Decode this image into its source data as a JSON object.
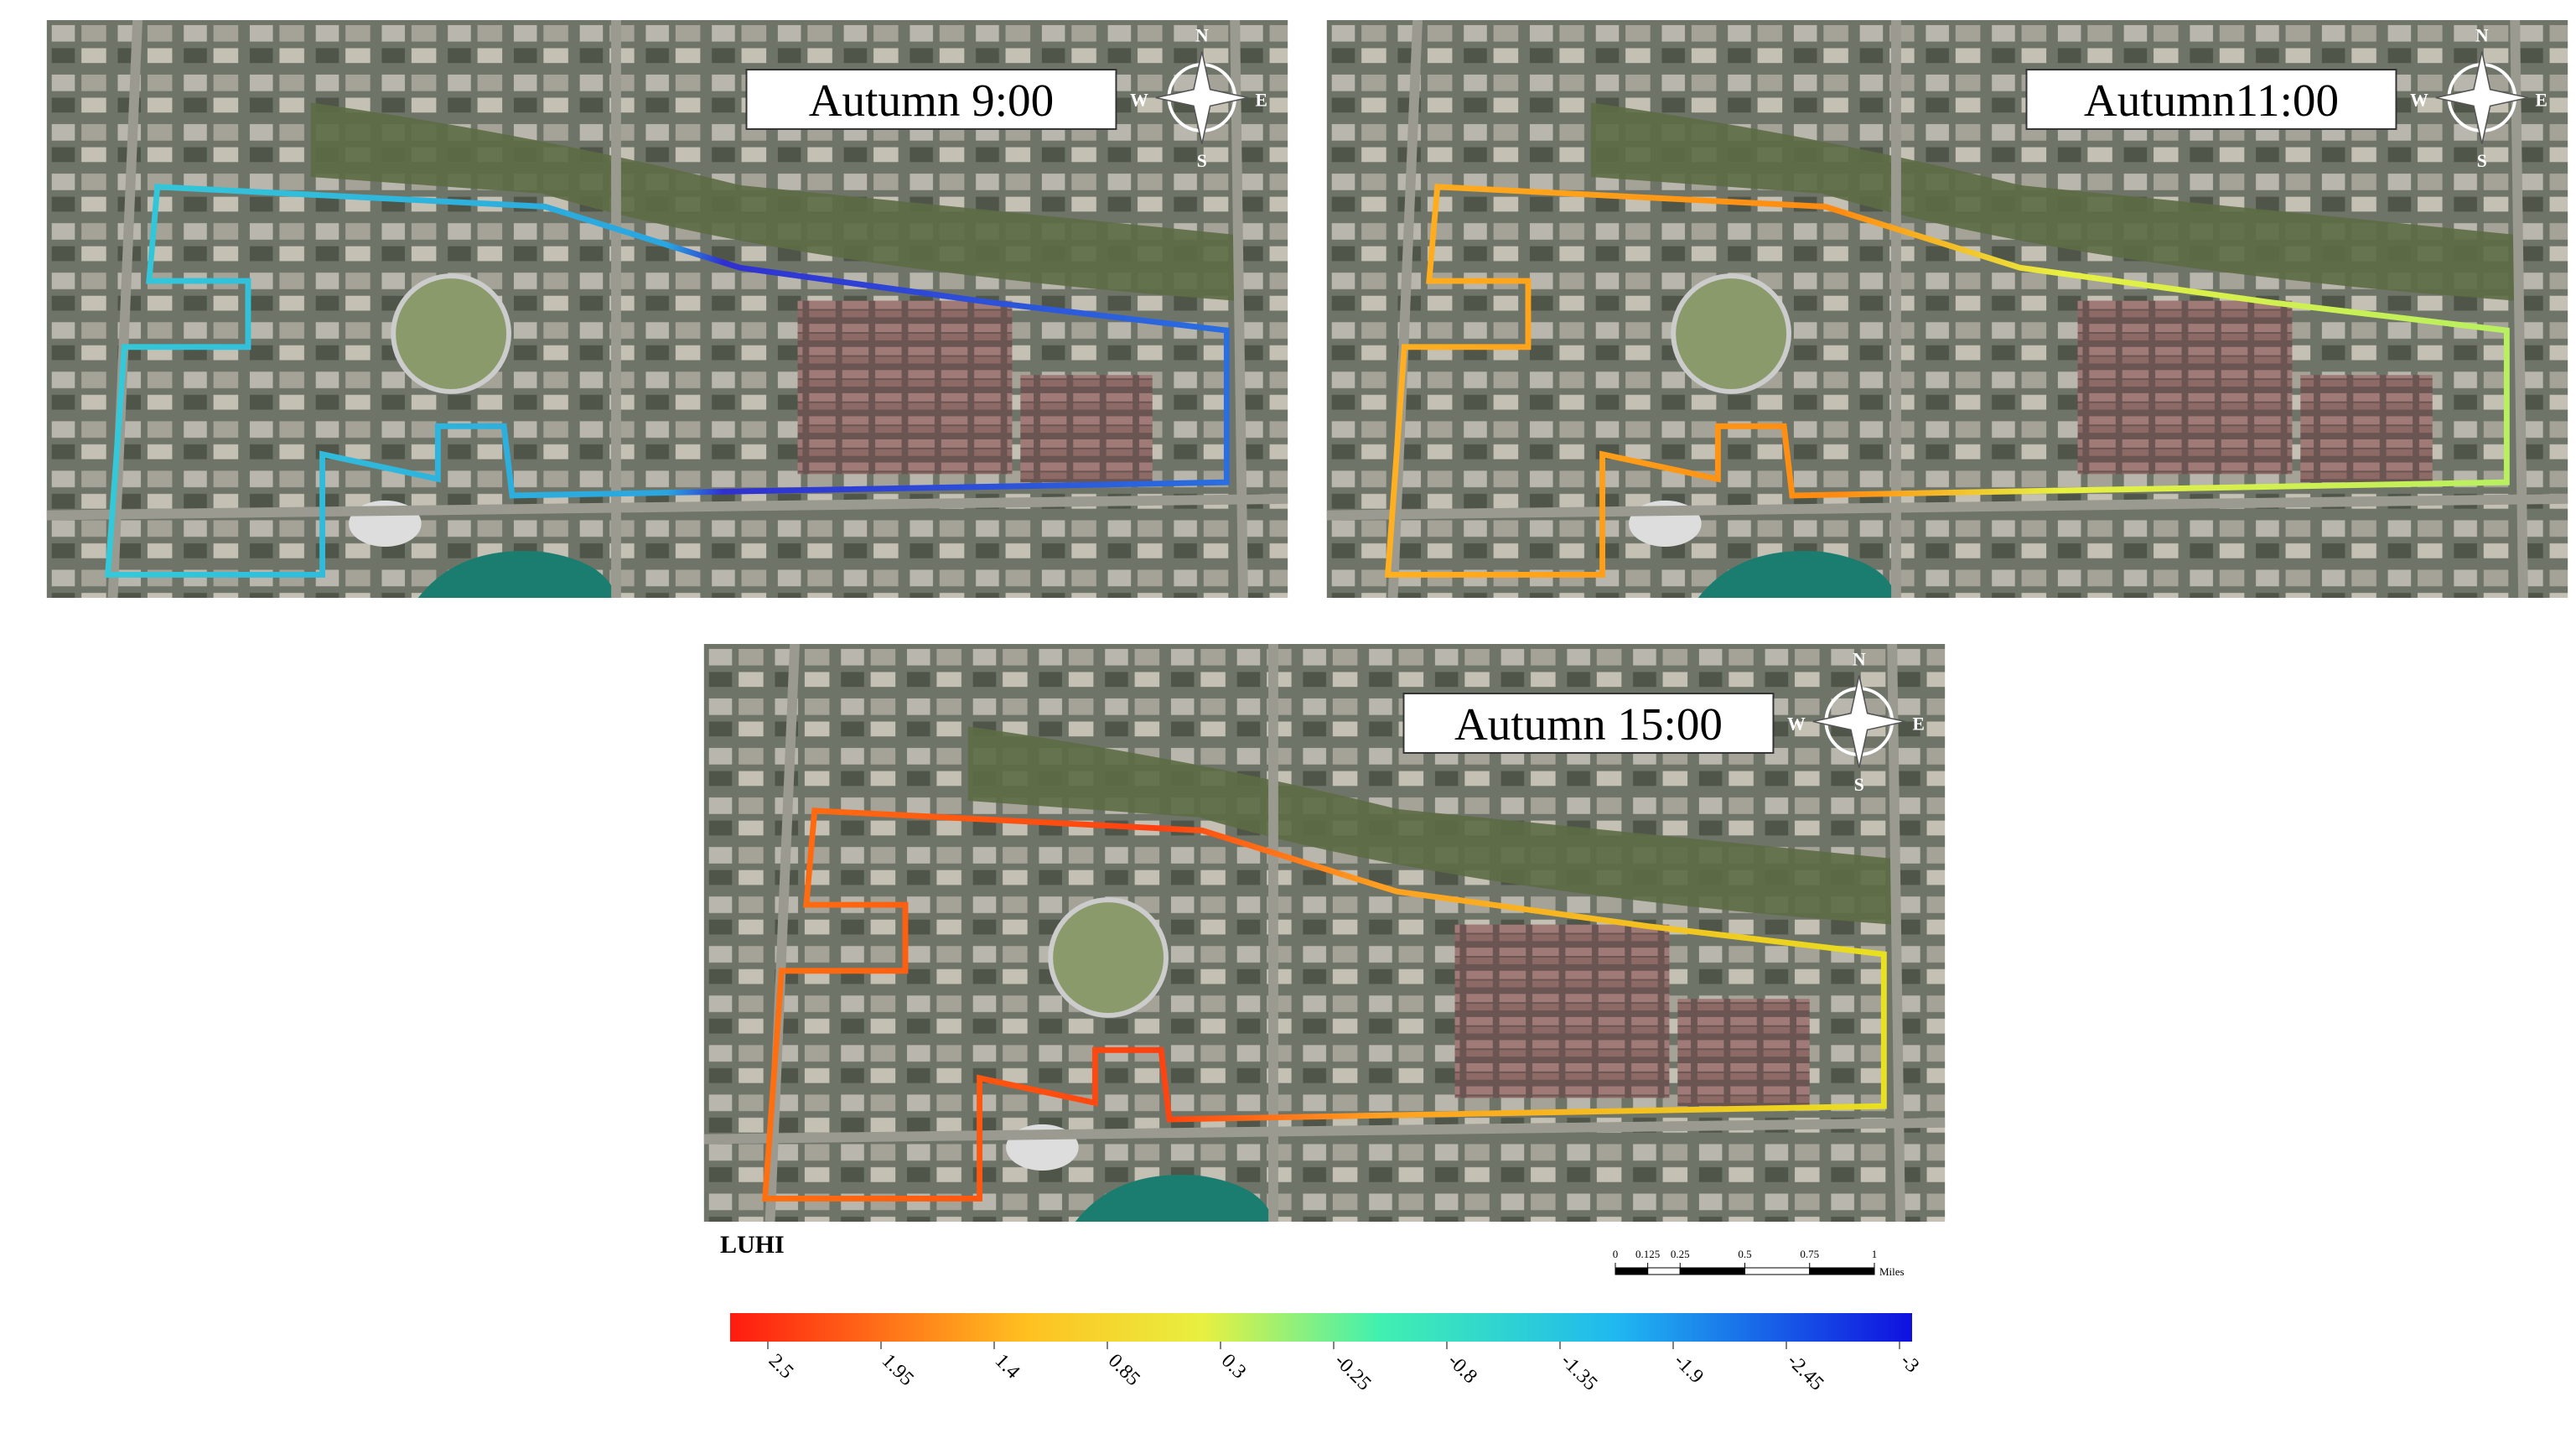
{
  "panels": [
    {
      "title": "Autumn 9:00"
    },
    {
      "title": "Autumn11:00"
    },
    {
      "title": "Autumn 15:00"
    }
  ],
  "compass": {
    "n": "N",
    "s": "S",
    "e": "E",
    "w": "W"
  },
  "legend": {
    "title": "LUHI",
    "ticks": [
      2.5,
      1.95,
      1.4,
      0.85,
      0.3,
      -0.25,
      -0.8,
      -1.35,
      -1.9,
      -2.45,
      -3
    ]
  },
  "scale_bar": {
    "ticks": [
      0,
      0.125,
      0.25,
      0.5,
      0.75,
      1
    ],
    "unit": "Miles"
  }
}
